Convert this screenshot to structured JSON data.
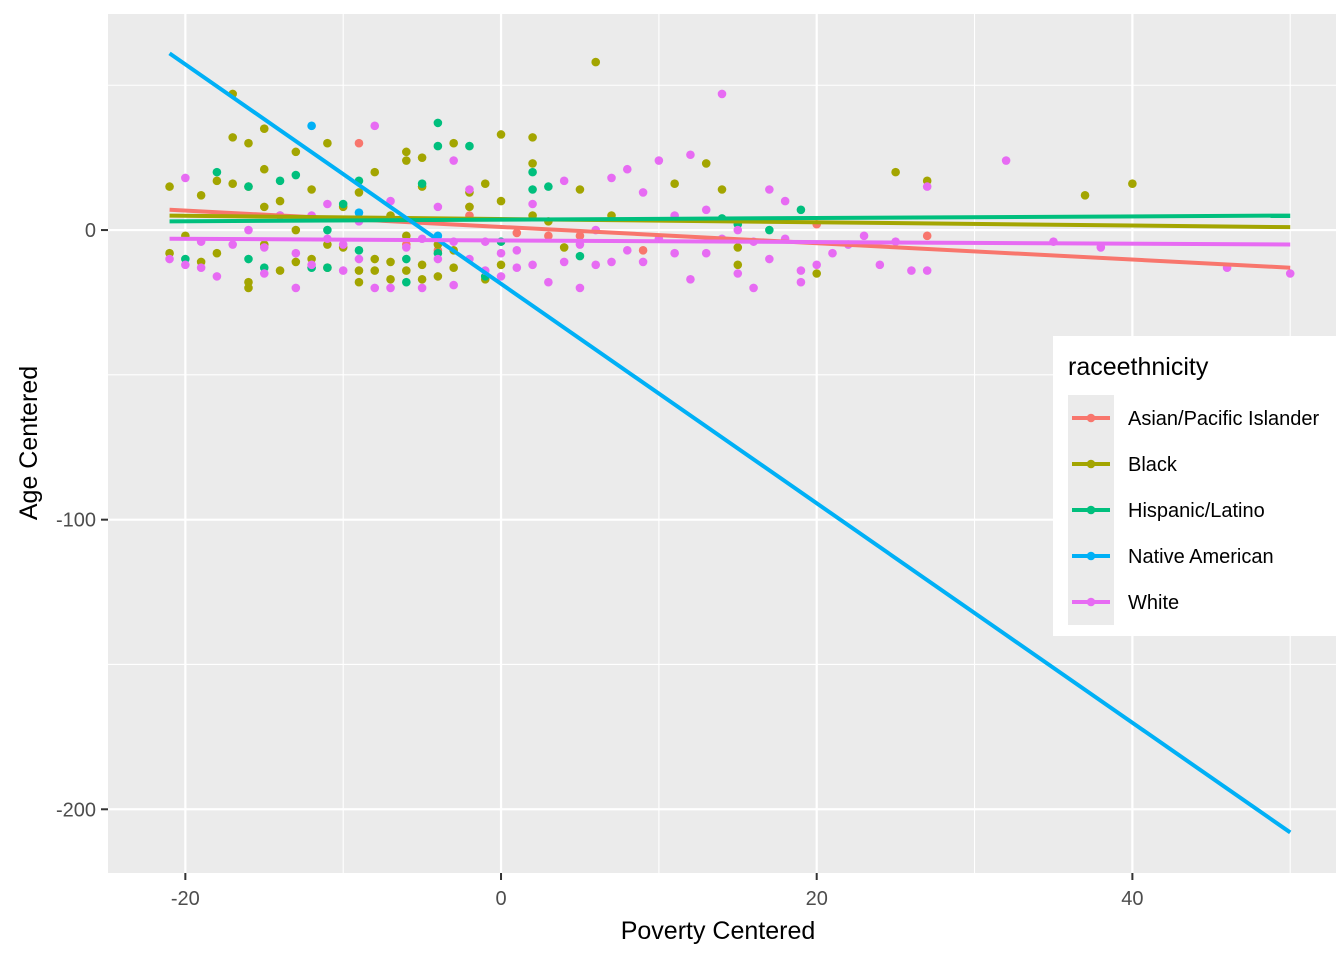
{
  "chart_data": {
    "type": "scatter",
    "title": "",
    "xlabel": "Poverty Centered",
    "ylabel": "Age Centered",
    "xlim": [
      -24.9,
      52.9
    ],
    "ylim": [
      -222,
      74.6
    ],
    "x_ticks": [
      -20,
      0,
      20,
      40
    ],
    "y_ticks": [
      0,
      -100,
      -200
    ],
    "x_tick_labels": [
      "-20",
      "0",
      "20",
      "40"
    ],
    "y_tick_labels": [
      "0",
      "-100",
      "-200"
    ],
    "grid": true,
    "legend": {
      "title": "raceethnicity",
      "placement": "right",
      "entries": [
        "Asian/Pacific Islander",
        "Black",
        "Hispanic/Latino",
        "Native American",
        "White"
      ]
    },
    "series": [
      {
        "name": "Asian/Pacific Islander",
        "color": "#F8766D",
        "points": [
          [
            -9,
            30
          ],
          [
            -2,
            8
          ],
          [
            -4,
            -7
          ],
          [
            1,
            -1
          ],
          [
            3,
            -2
          ],
          [
            9,
            -7
          ],
          [
            20,
            2
          ],
          [
            27,
            -2
          ],
          [
            -6,
            -5
          ],
          [
            -2,
            5
          ],
          [
            5,
            -2
          ]
        ],
        "fit": [
          [
            -21,
            7
          ],
          [
            50,
            -13
          ]
        ]
      },
      {
        "name": "Black",
        "color": "#A3A500",
        "points": [
          [
            -21,
            15
          ],
          [
            -21,
            -8
          ],
          [
            -20,
            -2
          ],
          [
            -19,
            12
          ],
          [
            -19,
            -11
          ],
          [
            -18,
            17
          ],
          [
            -18,
            -8
          ],
          [
            -17,
            47
          ],
          [
            -17,
            32
          ],
          [
            -17,
            16
          ],
          [
            -16,
            30
          ],
          [
            -16,
            15
          ],
          [
            -16,
            -18
          ],
          [
            -16,
            -20
          ],
          [
            -15,
            35
          ],
          [
            -15,
            21
          ],
          [
            -15,
            8
          ],
          [
            -15,
            -5
          ],
          [
            -14,
            10
          ],
          [
            -14,
            5
          ],
          [
            -14,
            -14
          ],
          [
            -13,
            27
          ],
          [
            -13,
            0
          ],
          [
            -13,
            -11
          ],
          [
            -12,
            14
          ],
          [
            -12,
            -10
          ],
          [
            -11,
            30
          ],
          [
            -11,
            -13
          ],
          [
            -11,
            -5
          ],
          [
            -10,
            8
          ],
          [
            -10,
            -6
          ],
          [
            -9,
            13
          ],
          [
            -9,
            -14
          ],
          [
            -9,
            -18
          ],
          [
            -8,
            20
          ],
          [
            -8,
            -10
          ],
          [
            -8,
            -14
          ],
          [
            -7,
            5
          ],
          [
            -7,
            -11
          ],
          [
            -7,
            -17
          ],
          [
            -6,
            27
          ],
          [
            -6,
            24
          ],
          [
            -6,
            -2
          ],
          [
            -6,
            -14
          ],
          [
            -5,
            25
          ],
          [
            -5,
            15
          ],
          [
            -5,
            -12
          ],
          [
            -5,
            -17
          ],
          [
            -4,
            -5
          ],
          [
            -4,
            -16
          ],
          [
            -3,
            30
          ],
          [
            -3,
            -7
          ],
          [
            -3,
            -13
          ],
          [
            -2,
            13
          ],
          [
            -2,
            8
          ],
          [
            -1,
            16
          ],
          [
            -1,
            -17
          ],
          [
            0,
            33
          ],
          [
            0,
            10
          ],
          [
            0,
            -12
          ],
          [
            2,
            32
          ],
          [
            2,
            23
          ],
          [
            2,
            5
          ],
          [
            3,
            3
          ],
          [
            4,
            -6
          ],
          [
            5,
            14
          ],
          [
            6,
            58
          ],
          [
            7,
            5
          ],
          [
            11,
            16
          ],
          [
            13,
            23
          ],
          [
            14,
            14
          ],
          [
            15,
            -6
          ],
          [
            15,
            -12
          ],
          [
            20,
            -15
          ],
          [
            25,
            20
          ],
          [
            27,
            17
          ],
          [
            37,
            12
          ],
          [
            40,
            16
          ]
        ],
        "fit": [
          [
            -21,
            5
          ],
          [
            50,
            1
          ]
        ]
      },
      {
        "name": "Hispanic/Latino",
        "color": "#00BF7D",
        "points": [
          [
            -20,
            -10
          ],
          [
            -18,
            20
          ],
          [
            -16,
            15
          ],
          [
            -16,
            -10
          ],
          [
            -15,
            -13
          ],
          [
            -14,
            17
          ],
          [
            -13,
            19
          ],
          [
            -12,
            -13
          ],
          [
            -11,
            0
          ],
          [
            -11,
            -13
          ],
          [
            -10,
            9
          ],
          [
            -9,
            17
          ],
          [
            -9,
            -7
          ],
          [
            -6,
            -10
          ],
          [
            -6,
            -18
          ],
          [
            -5,
            16
          ],
          [
            -4,
            37
          ],
          [
            -4,
            29
          ],
          [
            -4,
            -8
          ],
          [
            -2,
            29
          ],
          [
            -1,
            -16
          ],
          [
            0,
            -4
          ],
          [
            2,
            20
          ],
          [
            2,
            14
          ],
          [
            3,
            15
          ],
          [
            5,
            -9
          ],
          [
            14,
            4
          ],
          [
            15,
            2
          ],
          [
            17,
            0
          ],
          [
            19,
            7
          ]
        ],
        "fit": [
          [
            -21,
            3
          ],
          [
            50,
            5
          ]
        ]
      },
      {
        "name": "Native American",
        "color": "#00B0F6",
        "points": [
          [
            -12,
            36
          ],
          [
            -9,
            6
          ],
          [
            -4,
            -2
          ]
        ],
        "fit": [
          [
            -21,
            61
          ],
          [
            50,
            -208
          ]
        ]
      },
      {
        "name": "White",
        "color": "#E76BF3",
        "points": [
          [
            -21,
            -10
          ],
          [
            -20,
            18
          ],
          [
            -20,
            -12
          ],
          [
            -19,
            -4
          ],
          [
            -19,
            -13
          ],
          [
            -18,
            -16
          ],
          [
            -17,
            -5
          ],
          [
            -16,
            0
          ],
          [
            -15,
            -6
          ],
          [
            -15,
            -15
          ],
          [
            -14,
            5
          ],
          [
            -13,
            -20
          ],
          [
            -13,
            -8
          ],
          [
            -12,
            5
          ],
          [
            -12,
            -12
          ],
          [
            -11,
            9
          ],
          [
            -11,
            -3
          ],
          [
            -10,
            -5
          ],
          [
            -10,
            -14
          ],
          [
            -9,
            3
          ],
          [
            -9,
            -10
          ],
          [
            -8,
            36
          ],
          [
            -8,
            -20
          ],
          [
            -7,
            10
          ],
          [
            -7,
            -20
          ],
          [
            -6,
            -6
          ],
          [
            -5,
            -3
          ],
          [
            -5,
            -20
          ],
          [
            -4,
            8
          ],
          [
            -4,
            -10
          ],
          [
            -3,
            24
          ],
          [
            -3,
            -4
          ],
          [
            -3,
            -19
          ],
          [
            -2,
            14
          ],
          [
            -2,
            -10
          ],
          [
            -1,
            -4
          ],
          [
            -1,
            -14
          ],
          [
            0,
            -8
          ],
          [
            0,
            -16
          ],
          [
            1,
            -7
          ],
          [
            1,
            -13
          ],
          [
            2,
            9
          ],
          [
            2,
            -12
          ],
          [
            3,
            -18
          ],
          [
            4,
            17
          ],
          [
            4,
            -11
          ],
          [
            5,
            -5
          ],
          [
            5,
            -20
          ],
          [
            6,
            0
          ],
          [
            6,
            -12
          ],
          [
            7,
            18
          ],
          [
            7,
            -11
          ],
          [
            8,
            21
          ],
          [
            8,
            -7
          ],
          [
            9,
            13
          ],
          [
            9,
            -11
          ],
          [
            10,
            24
          ],
          [
            10,
            -3
          ],
          [
            11,
            5
          ],
          [
            11,
            -8
          ],
          [
            12,
            26
          ],
          [
            12,
            -17
          ],
          [
            13,
            7
          ],
          [
            13,
            -8
          ],
          [
            14,
            47
          ],
          [
            14,
            -3
          ],
          [
            15,
            0
          ],
          [
            15,
            -15
          ],
          [
            16,
            -4
          ],
          [
            16,
            -20
          ],
          [
            17,
            14
          ],
          [
            17,
            -10
          ],
          [
            18,
            10
          ],
          [
            18,
            -3
          ],
          [
            19,
            -14
          ],
          [
            19,
            -18
          ],
          [
            20,
            -12
          ],
          [
            21,
            -8
          ],
          [
            22,
            -5
          ],
          [
            23,
            -2
          ],
          [
            24,
            -12
          ],
          [
            25,
            -4
          ],
          [
            26,
            -14
          ],
          [
            27,
            15
          ],
          [
            27,
            -14
          ],
          [
            32,
            24
          ],
          [
            35,
            -4
          ],
          [
            38,
            -6
          ],
          [
            46,
            -13
          ],
          [
            50,
            -15
          ]
        ],
        "fit": [
          [
            -21,
            -3
          ],
          [
            50,
            -5
          ]
        ]
      }
    ]
  }
}
